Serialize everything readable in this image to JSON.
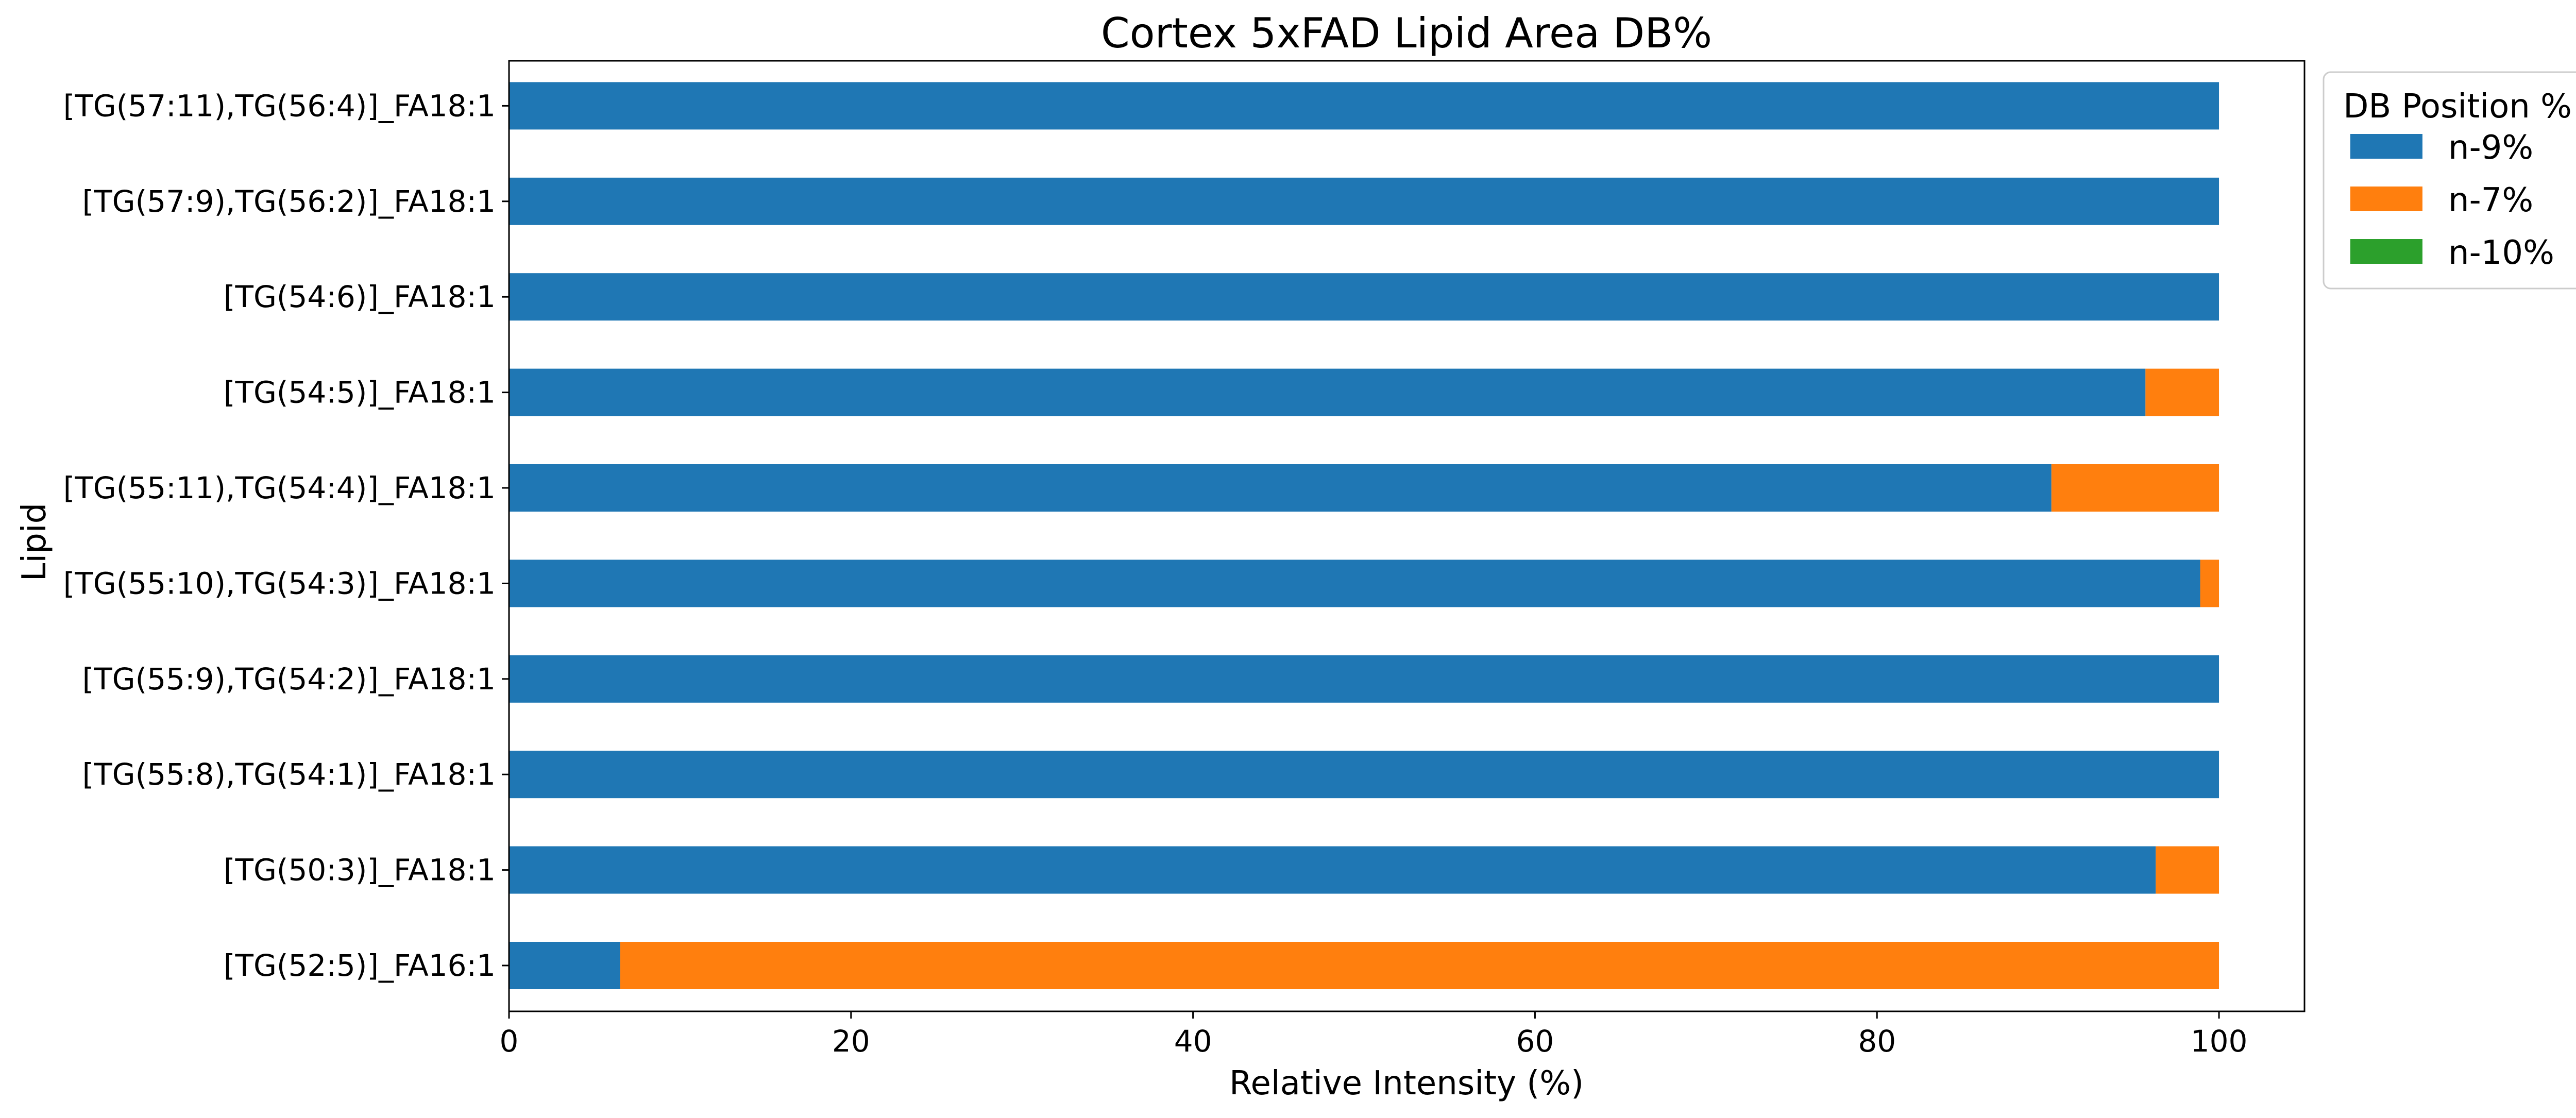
{
  "chart_data": {
    "type": "bar",
    "orientation": "horizontal",
    "stacked": true,
    "title": "Cortex 5xFAD Lipid Area DB%",
    "xlabel": "Relative Intensity (%)",
    "ylabel": "Lipid",
    "xlim": [
      0,
      105
    ],
    "xticks": [
      0,
      20,
      40,
      60,
      80,
      100
    ],
    "grid": false,
    "categories": [
      "[TG(52:5)]_FA16:1",
      "[TG(50:3)]_FA18:1",
      "[TG(55:8),TG(54:1)]_FA18:1",
      "[TG(55:9),TG(54:2)]_FA18:1",
      "[TG(55:10),TG(54:3)]_FA18:1",
      "[TG(55:11),TG(54:4)]_FA18:1",
      "[TG(54:5)]_FA18:1",
      "[TG(54:6)]_FA18:1",
      "[TG(57:9),TG(56:2)]_FA18:1",
      "[TG(57:11),TG(56:4)]_FA18:1"
    ],
    "series": [
      {
        "name": "n-9%",
        "color": "#1f77b4",
        "values": [
          6.5,
          96.3,
          100,
          100,
          98.9,
          90.2,
          95.7,
          100,
          100,
          100
        ]
      },
      {
        "name": "n-7%",
        "color": "#ff7f0e",
        "values": [
          93.5,
          3.7,
          0,
          0,
          1.1,
          9.8,
          4.3,
          0,
          0,
          0
        ]
      },
      {
        "name": "n-10%",
        "color": "#2ca02c",
        "values": [
          0,
          0,
          0,
          0,
          0,
          0,
          0,
          0,
          0,
          0
        ]
      }
    ],
    "legend": {
      "title": "DB Position %",
      "placement": "outside-upper-right"
    }
  }
}
